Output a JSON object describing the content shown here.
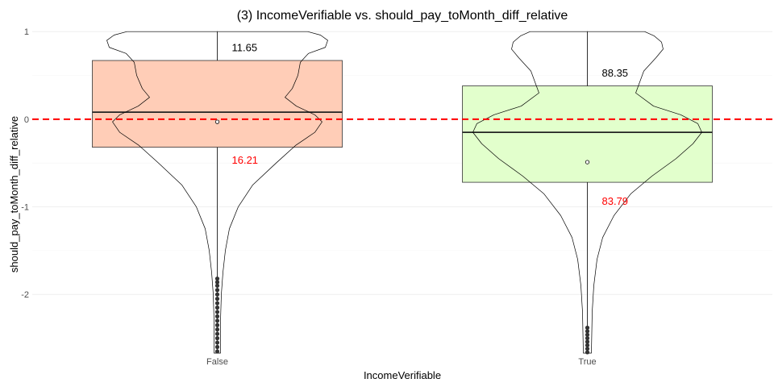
{
  "chart_data": {
    "type": "boxplot+violin",
    "title": "(3) IncomeVerifiable vs. should_pay_toMonth_diff_relative",
    "xlabel": "IncomeVerifiable",
    "ylabel": "should_pay_toMonth_diff_relative",
    "categories": [
      "False",
      "True"
    ],
    "ylim": [
      -2.67,
      1.02
    ],
    "yticks": [
      1,
      0,
      -1,
      -2
    ],
    "grid": true,
    "reference_line": {
      "y": 0,
      "color": "#ff0000",
      "style": "dashed"
    },
    "boxes": [
      {
        "category": "False",
        "q1": -0.32,
        "median": 0.08,
        "q3": 0.67,
        "whisker_low": -2.67,
        "whisker_high": 1.0,
        "mean": -0.03,
        "fill": "#ffcdb7"
      },
      {
        "category": "True",
        "q1": -0.72,
        "median": -0.15,
        "q3": 0.38,
        "whisker_low": -2.67,
        "whisker_high": 1.0,
        "mean": -0.49,
        "fill": "#e2ffcc"
      }
    ],
    "outliers": [
      {
        "category": "False",
        "values": [
          -1.82,
          -1.86,
          -1.9,
          -1.95,
          -2.0,
          -2.05,
          -2.1,
          -2.15,
          -2.2,
          -2.25,
          -2.3,
          -2.35,
          -2.4,
          -2.45,
          -2.5,
          -2.55,
          -2.6,
          -2.65
        ]
      },
      {
        "category": "True",
        "values": [
          -2.38,
          -2.42,
          -2.46,
          -2.5,
          -2.54,
          -2.58,
          -2.62,
          -2.66
        ]
      }
    ],
    "annotations": [
      {
        "category": "False",
        "text": "11.65",
        "y": 0.82,
        "color": "#000000"
      },
      {
        "category": "False",
        "text": "16.21",
        "y": -0.46,
        "color": "#ff0000"
      },
      {
        "category": "True",
        "text": "88.35",
        "y": 0.53,
        "color": "#000000"
      },
      {
        "category": "True",
        "text": "83.79",
        "y": -0.93,
        "color": "#ff0000"
      }
    ]
  }
}
